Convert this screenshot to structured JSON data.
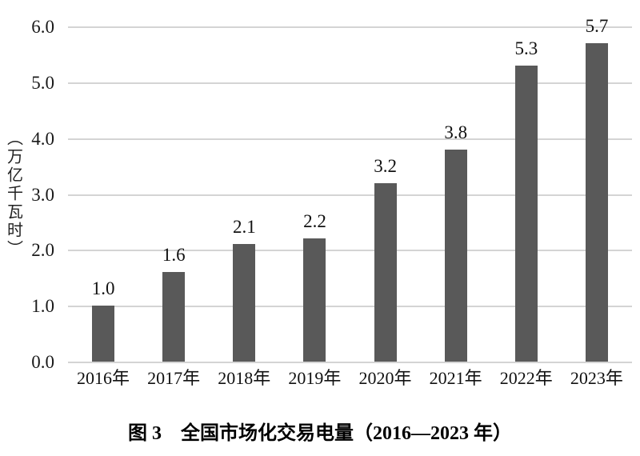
{
  "figure": {
    "caption": "图 3　全国市场化交易电量（2016—2023 年）"
  },
  "chart_data": {
    "type": "bar",
    "title": "图 3 全国市场化交易电量（2016—2023 年）",
    "categories": [
      "2016年",
      "2017年",
      "2018年",
      "2019年",
      "2020年",
      "2021年",
      "2022年",
      "2023年"
    ],
    "values": [
      1.0,
      1.6,
      2.1,
      2.2,
      3.2,
      3.8,
      5.3,
      5.7
    ],
    "value_labels": [
      "1.0",
      "1.6",
      "2.1",
      "2.2",
      "3.2",
      "3.8",
      "5.3",
      "5.7"
    ],
    "xlabel": "",
    "ylabel": "（万亿千瓦时）",
    "ylim": [
      0.0,
      6.0
    ],
    "ytick_labels": [
      "0.0",
      "1.0",
      "2.0",
      "3.0",
      "4.0",
      "5.0",
      "6.0"
    ],
    "grid": true,
    "legend": "none",
    "bar_color": "#595959",
    "gridline_color": "#d4d4d4",
    "label_color": "#111111"
  }
}
